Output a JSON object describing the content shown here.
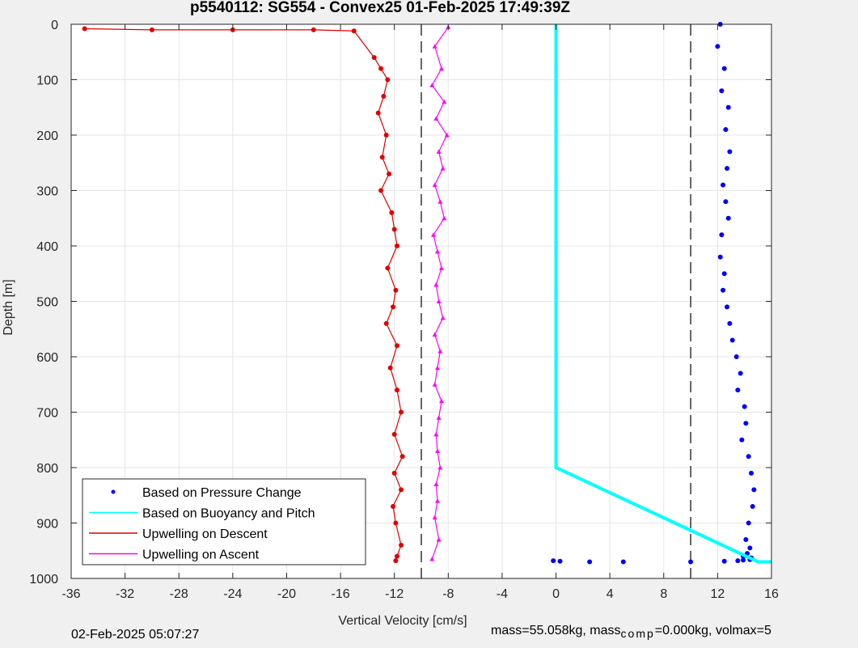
{
  "chart_data": {
    "type": "scatter",
    "title": "p5540112: SG554 - Convex25 01-Feb-2025 17:49:39Z",
    "xlabel": "Vertical Velocity [cm/s]",
    "ylabel": "Depth [m]",
    "xlim": [
      -36,
      16
    ],
    "ylim": [
      0,
      1000
    ],
    "y_reversed": true,
    "xticks": [
      "-36",
      "-32",
      "-28",
      "-24",
      "-20",
      "-16",
      "-12",
      "-8",
      "-4",
      "0",
      "4",
      "8",
      "12",
      "16"
    ],
    "yticks": [
      "0",
      "100",
      "200",
      "300",
      "400",
      "500",
      "600",
      "700",
      "800",
      "900",
      "1000"
    ],
    "grid": true,
    "legend_position": "bottom-left",
    "reference_lines_x": [
      -10,
      10
    ],
    "series": [
      {
        "name": "Based on Pressure Change",
        "color": "#0000ff",
        "marker": "dot",
        "x": [
          12.2,
          12.0,
          12.5,
          12.3,
          12.8,
          12.6,
          12.9,
          12.7,
          12.4,
          12.6,
          12.8,
          12.3,
          12.2,
          12.5,
          12.4,
          12.7,
          12.9,
          13.1,
          13.4,
          13.7,
          13.5,
          14.0,
          14.1,
          13.8,
          14.3,
          14.5,
          14.7,
          14.6,
          14.3,
          14.1,
          14.4,
          14.2,
          13.9,
          14.5,
          14.4,
          13.9,
          13.5,
          12.5,
          10.0,
          5.0,
          2.5,
          0.3,
          -0.2
        ],
        "y": [
          0,
          40,
          80,
          120,
          150,
          190,
          230,
          260,
          290,
          320,
          350,
          380,
          420,
          450,
          480,
          510,
          540,
          570,
          600,
          630,
          660,
          690,
          720,
          750,
          780,
          810,
          840,
          870,
          900,
          930,
          945,
          955,
          960,
          963,
          966,
          967,
          968,
          969,
          970,
          970,
          970,
          969,
          968
        ]
      },
      {
        "name": "Based on Buoyancy and Pitch",
        "color": "#00ffff",
        "marker": "line",
        "x": [
          0.0,
          0.0,
          0.0,
          0.0,
          0.0,
          15.0,
          16.0
        ],
        "y": [
          0,
          200,
          400,
          600,
          800,
          970,
          970
        ]
      },
      {
        "name": "Upwelling on Descent",
        "color": "#e00000",
        "marker": "dot-line",
        "x": [
          -35.0,
          -30.0,
          -24.0,
          -18.0,
          -15.0,
          -13.5,
          -13.0,
          -12.5,
          -12.8,
          -13.2,
          -12.6,
          -12.9,
          -12.4,
          -13.0,
          -12.2,
          -12.0,
          -11.8,
          -12.5,
          -11.9,
          -12.1,
          -12.6,
          -11.8,
          -12.3,
          -11.8,
          -11.5,
          -12.0,
          -11.4,
          -12.0,
          -11.5,
          -12.1,
          -11.9,
          -11.5,
          -11.8,
          -11.9
        ],
        "y": [
          8,
          10,
          10,
          10,
          12,
          60,
          80,
          100,
          130,
          160,
          200,
          240,
          270,
          300,
          340,
          370,
          400,
          440,
          480,
          510,
          540,
          580,
          620,
          660,
          700,
          740,
          780,
          810,
          840,
          870,
          900,
          940,
          960,
          968
        ]
      },
      {
        "name": "Upwelling on Ascent",
        "color": "#ff00ff",
        "marker": "triangle-line",
        "x": [
          -8.0,
          -9.0,
          -8.5,
          -9.2,
          -8.3,
          -8.9,
          -8.1,
          -8.7,
          -8.4,
          -9.0,
          -8.6,
          -8.3,
          -9.1,
          -8.8,
          -8.5,
          -8.9,
          -8.7,
          -8.4,
          -9.0,
          -8.6,
          -8.8,
          -9.0,
          -8.5,
          -8.7,
          -8.9,
          -8.8,
          -8.6,
          -8.9,
          -8.8,
          -9.0,
          -8.7,
          -9.2
        ],
        "y": [
          5,
          40,
          80,
          110,
          140,
          170,
          200,
          230,
          260,
          290,
          320,
          350,
          380,
          410,
          440,
          470,
          500,
          530,
          560,
          590,
          620,
          650,
          680,
          710,
          740,
          770,
          800,
          830,
          860,
          890,
          930,
          965
        ]
      }
    ]
  },
  "footer": {
    "date": "02-Feb-2025 05:07:27",
    "mass_prefix": "mass=55.058kg, mass",
    "mass_sub": "comp",
    "mass_suffix": "=0.000kg, volmax=5"
  }
}
